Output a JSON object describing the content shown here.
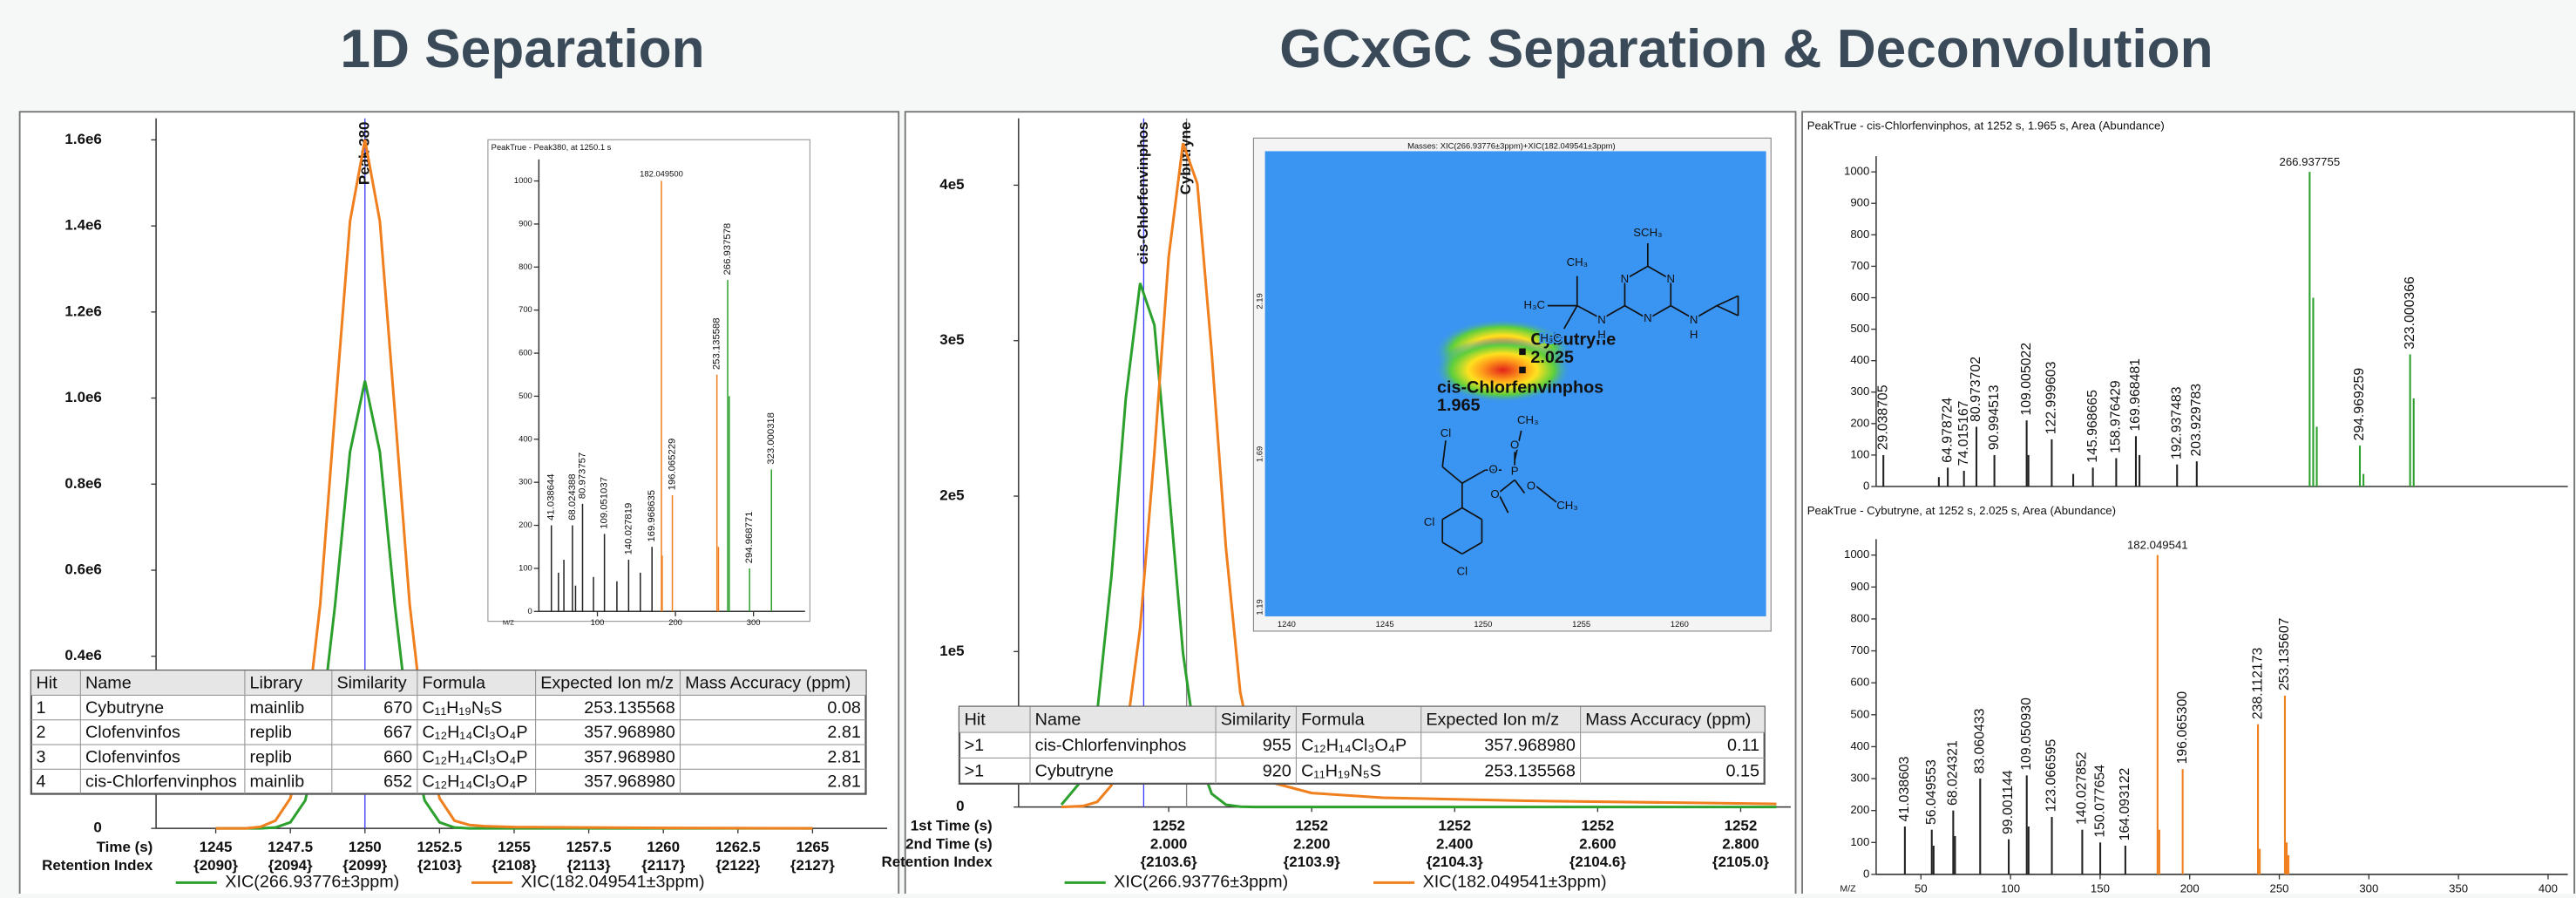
{
  "headers": [
    "1D Separation",
    "GCxGC Separation & Deconvolution"
  ],
  "chart_data": [
    {
      "type": "line",
      "xlabel": "Time (s)",
      "xlabel2": "Retention Index",
      "xlim": [
        1243,
        1267.5
      ],
      "ylim": [
        0,
        1650000
      ],
      "xticks": [
        1245,
        1247.5,
        1250,
        1252.5,
        1255,
        1257.5,
        1260,
        1262.5,
        1265
      ],
      "retention_index_labels": [
        "{2090}",
        "{2094}",
        "{2099}",
        "{2103}",
        "{2108}",
        "{2113}",
        "{2117}",
        "{2122}",
        "{2127}"
      ],
      "yticks": [
        0,
        {
          "value": 400000,
          "label": "0.4e6"
        },
        {
          "value": 600000,
          "label": "0.6e6"
        },
        {
          "value": 800000,
          "label": "0.8e6"
        },
        {
          "value": 1000000,
          "label": "1.0e6"
        },
        {
          "value": 1200000,
          "label": "1.2e6"
        },
        {
          "value": 1400000,
          "label": "1.4e6"
        },
        {
          "value": 1600000,
          "label": "1.6e6"
        }
      ],
      "x": [
        1245,
        1246,
        1246.5,
        1247,
        1247.5,
        1248,
        1248.5,
        1249,
        1249.5,
        1250,
        1250.5,
        1251,
        1251.5,
        1252,
        1252.5,
        1253,
        1253.5,
        1254,
        1255,
        1260,
        1265
      ],
      "series": [
        {
          "name": "XIC(266.93776±3ppm)",
          "color": "#2ca02c",
          "values": [
            0,
            0,
            0,
            2000,
            14000,
            65000,
            219000,
            520000,
            875000,
            1040000,
            875000,
            520000,
            219000,
            65000,
            14000,
            2000,
            0,
            0,
            0,
            0,
            0
          ]
        },
        {
          "name": "XIC(182.049541±3ppm)",
          "color": "#f07f1e",
          "values": [
            0,
            0,
            3500,
            18000,
            70000,
            217000,
            520000,
            970000,
            1411000,
            1600000,
            1411000,
            970000,
            520000,
            217000,
            70000,
            18000,
            8000,
            5000,
            3000,
            1000,
            0
          ]
        }
      ],
      "annotations": [
        {
          "text": "Peak 380",
          "x": 1250
        }
      ]
    },
    {
      "type": "stem",
      "title": "PeakTrue - Peak380, at 1250.1 s",
      "xlabel": "M/Z",
      "xlim": [
        25,
        366
      ],
      "ylim": [
        0,
        1050
      ],
      "xticks": [
        100,
        200,
        300
      ],
      "yticks": [
        0,
        100,
        200,
        300,
        400,
        500,
        600,
        700,
        800,
        900,
        1000
      ],
      "x": [
        41.038644,
        50.1,
        57.07,
        68.024388,
        72.0,
        80.973757,
        95.0,
        109.051037,
        125.0,
        140.027819,
        155.0,
        169.968635,
        182.0495,
        183.05,
        196.065229,
        253.135588,
        255.13,
        266.937578,
        268.934,
        294.968771,
        323.000318
      ],
      "values": [
        200,
        90,
        120,
        200,
        60,
        250,
        80,
        180,
        70,
        120,
        90,
        150,
        1000,
        130,
        270,
        550,
        150,
        770,
        500,
        100,
        330
      ],
      "colors": [
        "#222",
        "#222",
        "#222",
        "#222",
        "#222",
        "#222",
        "#222",
        "#222",
        "#222",
        "#222",
        "#222",
        "#222",
        "#f07f1e",
        "#f07f1e",
        "#f07f1e",
        "#f07f1e",
        "#f07f1e",
        "#2ca02c",
        "#2ca02c",
        "#2ca02c",
        "#2ca02c"
      ],
      "peak_labels": [
        "41.038644",
        null,
        null,
        "68.024388",
        null,
        "80.973757",
        null,
        "109.051037",
        null,
        "140.027819",
        null,
        "169.968635",
        "182.049500",
        null,
        "196.065229",
        "253.135588",
        null,
        "266.937578",
        null,
        "294.968771",
        "323.000318"
      ]
    },
    {
      "type": "line",
      "xlabel_first": "1st Time (s)",
      "xlabel": "2nd Time (s)",
      "xlabel2": "Retention Index",
      "xlim": [
        1.79,
        2.87
      ],
      "ylim": [
        0,
        443000
      ],
      "xticks": [
        {
          "value": 2,
          "label": "2.000"
        },
        {
          "value": 2.2,
          "label": "2.200"
        },
        {
          "value": 2.4,
          "label": "2.400"
        },
        {
          "value": 2.6,
          "label": "2.600"
        },
        {
          "value": 2.8,
          "label": "2.800"
        }
      ],
      "first_time": [
        1252,
        1252,
        1252,
        1252,
        1252
      ],
      "retention_index_labels": [
        "{2103.6}",
        "{2103.9}",
        "{2104.3}",
        "{2104.6}",
        "{2105.0}"
      ],
      "yticks": [
        0,
        {
          "value": 100000,
          "label": "1e5"
        },
        {
          "value": 200000,
          "label": "2e5"
        },
        {
          "value": 300000,
          "label": "3e5"
        },
        {
          "value": 400000,
          "label": "4e5"
        }
      ],
      "x": [
        1.85,
        1.88,
        1.9,
        1.92,
        1.94,
        1.96,
        1.98,
        2.0,
        2.02,
        2.04,
        2.06,
        2.08,
        2.1,
        2.12,
        2.15,
        2.2,
        2.3,
        2.5,
        2.85
      ],
      "series": [
        {
          "name": "XIC(266.93776±3ppm)",
          "color": "#2ca02c",
          "values": [
            1500,
            18000,
            61000,
            149000,
            263000,
            337000,
            310000,
            206000,
            99000,
            34000,
            8600,
            1500,
            200,
            0,
            0,
            0,
            0,
            0,
            0
          ]
        },
        {
          "name": "XIC(182.049541±3ppm)",
          "color": "#f07f1e",
          "values": [
            0,
            600,
            3300,
            14000,
            45000,
            115000,
            228000,
            354000,
            427000,
            401000,
            293000,
            167000,
            74000,
            30000,
            15000,
            9000,
            6000,
            4000,
            2000
          ]
        }
      ],
      "annotations": [
        {
          "text": "cis-Chlorfenvinphos",
          "x": 1.965
        },
        {
          "text": "Cybutryne",
          "x": 2.025
        }
      ]
    },
    {
      "type": "contour",
      "title": "Masses:  XIC(266.93776±3ppm)+XIC(182.049541±3ppm)",
      "xlim": [
        1238.9,
        1264.4
      ],
      "ylim": [
        1.16,
        2.68
      ],
      "xticks": [
        1240,
        1245,
        1250,
        1255,
        1260
      ],
      "yticks": [
        1.19,
        1.69,
        2.19
      ],
      "points": [
        {
          "name": "Cybutryne",
          "x": 1252,
          "y": 2.025
        },
        {
          "name": "cis-Chlorfenvinphos",
          "x": 1252,
          "y": 1.965
        }
      ]
    },
    {
      "type": "stem",
      "title": "PeakTrue - cis-Chlorfenvinphos, at 1252 s, 1.965 s, Area (Abundance)",
      "xlim": [
        25,
        411
      ],
      "ylim": [
        0,
        1050
      ],
      "yticks": [
        0,
        100,
        200,
        300,
        400,
        500,
        600,
        700,
        800,
        900,
        1000
      ],
      "x": [
        29.038705,
        60.0,
        64.978724,
        74.015167,
        80.973702,
        90.994513,
        109.005022,
        110.0,
        122.999603,
        135.0,
        145.968665,
        158.976429,
        169.968481,
        171.97,
        192.937483,
        203.929783,
        266.937755,
        268.934,
        270.931,
        294.969259,
        296.97,
        323.000366,
        325.0
      ],
      "values": [
        100,
        30,
        60,
        50,
        190,
        100,
        210,
        100,
        150,
        40,
        60,
        90,
        160,
        100,
        70,
        80,
        1000,
        600,
        190,
        130,
        40,
        420,
        280
      ],
      "colors": [
        "#222",
        "#222",
        "#222",
        "#222",
        "#222",
        "#222",
        "#222",
        "#222",
        "#222",
        "#222",
        "#222",
        "#222",
        "#222",
        "#222",
        "#222",
        "#222",
        "#2ca02c",
        "#2ca02c",
        "#2ca02c",
        "#2ca02c",
        "#2ca02c",
        "#2ca02c",
        "#2ca02c"
      ],
      "peak_labels": [
        "29.038705",
        null,
        "64.978724",
        "74.015167",
        "80.973702",
        "90.994513",
        "109.005022",
        null,
        "122.999603",
        null,
        "145.968665",
        "158.976429",
        "169.968481",
        null,
        "192.937483",
        "203.929783",
        "266.937755",
        null,
        null,
        "294.969259",
        null,
        "323.000366",
        null
      ]
    },
    {
      "type": "stem",
      "title": "PeakTrue - Cybutryne, at 1252 s, 2.025 s, Area (Abundance)",
      "xlabel": "M/Z",
      "xlim": [
        25,
        411
      ],
      "ylim": [
        0,
        1050
      ],
      "xticks": [
        50,
        100,
        150,
        200,
        250,
        300,
        350,
        400
      ],
      "yticks": [
        0,
        100,
        200,
        300,
        400,
        500,
        600,
        700,
        800,
        900,
        1000
      ],
      "x": [
        41.038603,
        56.049553,
        57.06,
        68.024321,
        69.03,
        83.060433,
        99.001144,
        109.05093,
        110.06,
        123.066595,
        140.027852,
        150.077654,
        164.093122,
        182.049541,
        183.05,
        196.0653,
        238.112173,
        239.11,
        253.135607,
        254.13,
        255.13
      ],
      "values": [
        150,
        140,
        90,
        200,
        120,
        300,
        110,
        310,
        150,
        180,
        140,
        100,
        90,
        1000,
        140,
        330,
        470,
        80,
        560,
        100,
        60
      ],
      "colors": [
        "#222",
        "#222",
        "#222",
        "#222",
        "#222",
        "#222",
        "#222",
        "#222",
        "#222",
        "#222",
        "#222",
        "#222",
        "#222",
        "#f07f1e",
        "#f07f1e",
        "#f07f1e",
        "#f07f1e",
        "#f07f1e",
        "#f07f1e",
        "#f07f1e",
        "#f07f1e"
      ],
      "peak_labels": [
        "41.038603",
        "56.049553",
        null,
        "68.024321",
        null,
        "83.060433",
        "99.001144",
        "109.050930",
        null,
        "123.066595",
        "140.027852",
        "150.077654",
        "164.093122",
        "182.049541",
        null,
        "196.065300",
        "238.112173",
        null,
        "253.135607",
        null,
        null
      ]
    }
  ],
  "tables": [
    {
      "columns": [
        "Hit",
        "Name",
        "Library",
        "Similarity",
        "Formula",
        "Expected Ion m/z",
        "Mass Accuracy (ppm)"
      ],
      "rows": [
        [
          "1",
          "Cybutryne",
          "mainlib",
          "670",
          "C₁₁H₁₉N₅S",
          "253.135568",
          "0.08"
        ],
        [
          "2",
          "Clofenvinfos",
          "replib",
          "667",
          "C₁₂H₁₄Cl₃O₄P",
          "357.968980",
          "2.81"
        ],
        [
          "3",
          "Clofenvinfos",
          "replib",
          "660",
          "C₁₂H₁₄Cl₃O₄P",
          "357.968980",
          "2.81"
        ],
        [
          "4",
          "cis-Chlorfenvinphos",
          "mainlib",
          "652",
          "C₁₂H₁₄Cl₃O₄P",
          "357.968980",
          "2.81"
        ]
      ]
    },
    {
      "columns": [
        "Hit",
        "Name",
        "Similarity",
        "Formula",
        "Expected Ion m/z",
        "Mass Accuracy (ppm)"
      ],
      "rows": [
        [
          ">1",
          "cis-Chlorfenvinphos",
          "955",
          "C₁₂H₁₄Cl₃O₄P",
          "357.968980",
          "0.11"
        ],
        [
          ">1",
          "Cybutryne",
          "920",
          "C₁₁H₁₉N₅S",
          "253.135568",
          "0.15"
        ]
      ]
    }
  ],
  "structure_labels": [
    [
      "SCH₃",
      "N",
      "N",
      "N",
      "N",
      "H",
      "N",
      "H",
      "CH₃",
      "H₃C",
      "H₃C"
    ],
    [
      "Cl",
      "Cl",
      "Cl",
      "O",
      "P",
      "O",
      "O",
      "O",
      "CH₃",
      "CH₃"
    ]
  ]
}
